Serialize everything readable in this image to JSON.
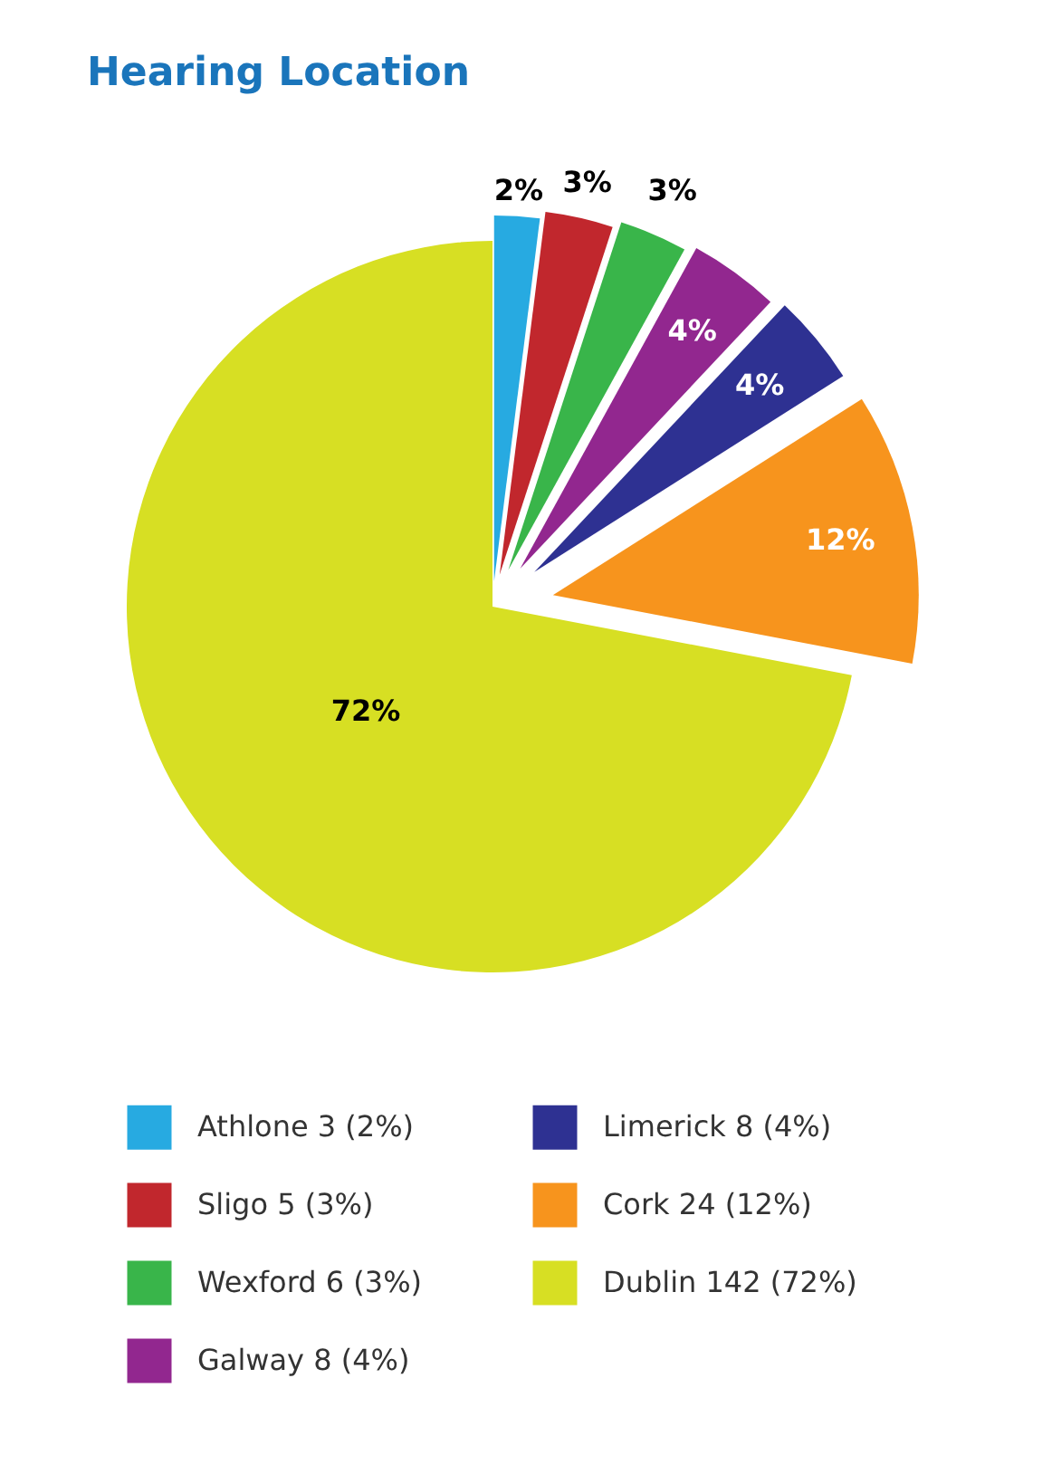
{
  "chart_data": {
    "type": "pie",
    "title": "Hearing Location",
    "categories": [
      "Athlone 3 (2%)",
      "Sligo 5 (3%)",
      "Wexford 6 (3%)",
      "Galway 8 (4%)",
      "Limerick 8 (4%)",
      "Cork 24 (12%)",
      "Dublin 142 (72%)"
    ],
    "values": [
      2,
      3,
      3,
      4,
      4,
      12,
      72
    ],
    "value_labels": [
      "2%",
      "3%",
      "3%",
      "4%",
      "4%",
      "12%",
      "72%"
    ],
    "colors": [
      "#27aae1",
      "#c1272d",
      "#39b54a",
      "#92278f",
      "#2e3192",
      "#f7941d",
      "#d7df23"
    ],
    "legend": "bottom"
  }
}
